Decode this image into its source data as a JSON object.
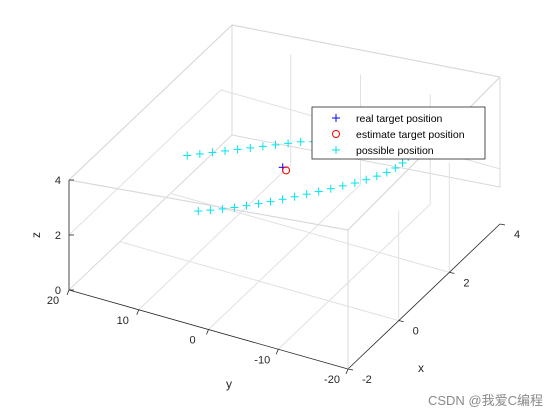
{
  "chart_data": {
    "type": "scatter3d",
    "title": "",
    "xlabel": "x",
    "ylabel": "y",
    "zlabel": "z",
    "xlim": [
      -2,
      4
    ],
    "ylim": [
      -20,
      20
    ],
    "zlim": [
      0,
      4
    ],
    "xticks": [
      "-2",
      "0",
      "2",
      "4"
    ],
    "yticks": [
      "20",
      "10",
      "0",
      "-10",
      "-20"
    ],
    "zticks": [
      "0",
      "2",
      "4"
    ],
    "grid": true,
    "legend_position": "top-right",
    "series": [
      {
        "name": "real target position",
        "marker": "+",
        "color": "#0000ff",
        "x": [
          0.6
        ],
        "y": [
          -1.2
        ],
        "z": [
          3.7
        ]
      },
      {
        "name": "estimate target position",
        "marker": "o",
        "color": "#ff0000",
        "x": [
          0.4
        ],
        "y": [
          -2.4
        ],
        "z": [
          3.85
        ]
      },
      {
        "name": "possible position",
        "marker": "+",
        "color": "#00e5ee",
        "x": [
          -0.5,
          -0.25,
          0,
          0.25,
          0.5,
          0.75,
          1.0,
          1.25,
          1.5,
          1.75,
          2.0,
          2.25,
          2.5,
          2.75,
          3.0,
          3.25,
          3.5,
          3.75,
          4.0,
          3.8,
          3.6,
          3.4,
          3.2,
          3.0,
          2.8,
          2.6,
          2.4,
          2.2,
          2.0,
          1.8,
          1.6,
          1.4,
          1.2,
          1.0,
          0.8,
          0.6,
          0.4,
          0.2,
          0.0,
          -0.2
        ],
        "y": [
          8.5,
          7.6,
          6.7,
          5.8,
          4.9,
          4.0,
          3.1,
          2.2,
          1.3,
          0.4,
          -0.5,
          -1.4,
          -2.3,
          -3.2,
          -4.1,
          -5.0,
          -5.9,
          -6.8,
          -7.7,
          -8.2,
          -8.3,
          -8.2,
          -7.9,
          -7.4,
          -6.7,
          -5.9,
          -5.0,
          -4.0,
          -3.0,
          -2.0,
          -1.0,
          0.0,
          1.0,
          2.0,
          3.0,
          4.0,
          5.0,
          6.0,
          7.0,
          8.0
        ],
        "z": [
          4.4,
          4.3,
          4.2,
          4.1,
          4.0,
          3.9,
          3.8,
          3.7,
          3.6,
          3.5,
          3.35,
          3.2,
          3.05,
          2.9,
          2.75,
          2.6,
          2.45,
          2.3,
          2.15,
          2.05,
          1.95,
          1.9,
          1.87,
          1.85,
          1.84,
          1.83,
          1.82,
          1.82,
          1.82,
          1.82,
          1.83,
          1.84,
          1.85,
          1.87,
          1.9,
          1.93,
          1.97,
          2.02,
          2.08,
          2.15
        ]
      }
    ]
  },
  "watermark": "CSDN @我爱C编程"
}
